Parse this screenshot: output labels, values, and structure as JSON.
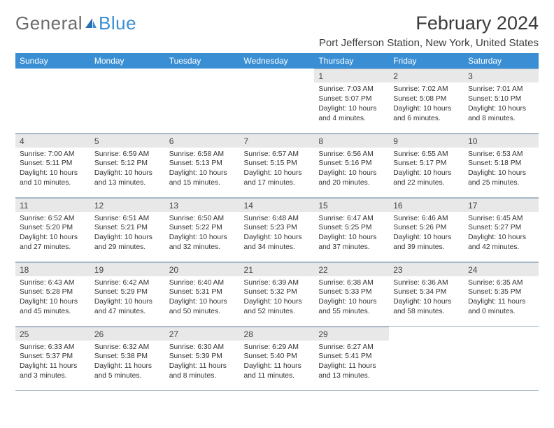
{
  "logo": {
    "text1": "General",
    "text2": "Blue"
  },
  "title": "February 2024",
  "location": "Port Jefferson Station, New York, United States",
  "colors": {
    "header_bg": "#3a8fd4",
    "header_text": "#ffffff",
    "daynum_bg": "#e8e8e8",
    "border": "#a8b8c8",
    "text": "#333333",
    "logo_gray": "#6a6a6a",
    "logo_blue": "#3a8fd4"
  },
  "day_headers": [
    "Sunday",
    "Monday",
    "Tuesday",
    "Wednesday",
    "Thursday",
    "Friday",
    "Saturday"
  ],
  "weeks": [
    [
      null,
      null,
      null,
      null,
      {
        "n": "1",
        "sunrise": "7:03 AM",
        "sunset": "5:07 PM",
        "dl": "10 hours and 4 minutes."
      },
      {
        "n": "2",
        "sunrise": "7:02 AM",
        "sunset": "5:08 PM",
        "dl": "10 hours and 6 minutes."
      },
      {
        "n": "3",
        "sunrise": "7:01 AM",
        "sunset": "5:10 PM",
        "dl": "10 hours and 8 minutes."
      }
    ],
    [
      {
        "n": "4",
        "sunrise": "7:00 AM",
        "sunset": "5:11 PM",
        "dl": "10 hours and 10 minutes."
      },
      {
        "n": "5",
        "sunrise": "6:59 AM",
        "sunset": "5:12 PM",
        "dl": "10 hours and 13 minutes."
      },
      {
        "n": "6",
        "sunrise": "6:58 AM",
        "sunset": "5:13 PM",
        "dl": "10 hours and 15 minutes."
      },
      {
        "n": "7",
        "sunrise": "6:57 AM",
        "sunset": "5:15 PM",
        "dl": "10 hours and 17 minutes."
      },
      {
        "n": "8",
        "sunrise": "6:56 AM",
        "sunset": "5:16 PM",
        "dl": "10 hours and 20 minutes."
      },
      {
        "n": "9",
        "sunrise": "6:55 AM",
        "sunset": "5:17 PM",
        "dl": "10 hours and 22 minutes."
      },
      {
        "n": "10",
        "sunrise": "6:53 AM",
        "sunset": "5:18 PM",
        "dl": "10 hours and 25 minutes."
      }
    ],
    [
      {
        "n": "11",
        "sunrise": "6:52 AM",
        "sunset": "5:20 PM",
        "dl": "10 hours and 27 minutes."
      },
      {
        "n": "12",
        "sunrise": "6:51 AM",
        "sunset": "5:21 PM",
        "dl": "10 hours and 29 minutes."
      },
      {
        "n": "13",
        "sunrise": "6:50 AM",
        "sunset": "5:22 PM",
        "dl": "10 hours and 32 minutes."
      },
      {
        "n": "14",
        "sunrise": "6:48 AM",
        "sunset": "5:23 PM",
        "dl": "10 hours and 34 minutes."
      },
      {
        "n": "15",
        "sunrise": "6:47 AM",
        "sunset": "5:25 PM",
        "dl": "10 hours and 37 minutes."
      },
      {
        "n": "16",
        "sunrise": "6:46 AM",
        "sunset": "5:26 PM",
        "dl": "10 hours and 39 minutes."
      },
      {
        "n": "17",
        "sunrise": "6:45 AM",
        "sunset": "5:27 PM",
        "dl": "10 hours and 42 minutes."
      }
    ],
    [
      {
        "n": "18",
        "sunrise": "6:43 AM",
        "sunset": "5:28 PM",
        "dl": "10 hours and 45 minutes."
      },
      {
        "n": "19",
        "sunrise": "6:42 AM",
        "sunset": "5:29 PM",
        "dl": "10 hours and 47 minutes."
      },
      {
        "n": "20",
        "sunrise": "6:40 AM",
        "sunset": "5:31 PM",
        "dl": "10 hours and 50 minutes."
      },
      {
        "n": "21",
        "sunrise": "6:39 AM",
        "sunset": "5:32 PM",
        "dl": "10 hours and 52 minutes."
      },
      {
        "n": "22",
        "sunrise": "6:38 AM",
        "sunset": "5:33 PM",
        "dl": "10 hours and 55 minutes."
      },
      {
        "n": "23",
        "sunrise": "6:36 AM",
        "sunset": "5:34 PM",
        "dl": "10 hours and 58 minutes."
      },
      {
        "n": "24",
        "sunrise": "6:35 AM",
        "sunset": "5:35 PM",
        "dl": "11 hours and 0 minutes."
      }
    ],
    [
      {
        "n": "25",
        "sunrise": "6:33 AM",
        "sunset": "5:37 PM",
        "dl": "11 hours and 3 minutes."
      },
      {
        "n": "26",
        "sunrise": "6:32 AM",
        "sunset": "5:38 PM",
        "dl": "11 hours and 5 minutes."
      },
      {
        "n": "27",
        "sunrise": "6:30 AM",
        "sunset": "5:39 PM",
        "dl": "11 hours and 8 minutes."
      },
      {
        "n": "28",
        "sunrise": "6:29 AM",
        "sunset": "5:40 PM",
        "dl": "11 hours and 11 minutes."
      },
      {
        "n": "29",
        "sunrise": "6:27 AM",
        "sunset": "5:41 PM",
        "dl": "11 hours and 13 minutes."
      },
      null,
      null
    ]
  ],
  "labels": {
    "sunrise": "Sunrise:",
    "sunset": "Sunset:",
    "daylight": "Daylight:"
  }
}
